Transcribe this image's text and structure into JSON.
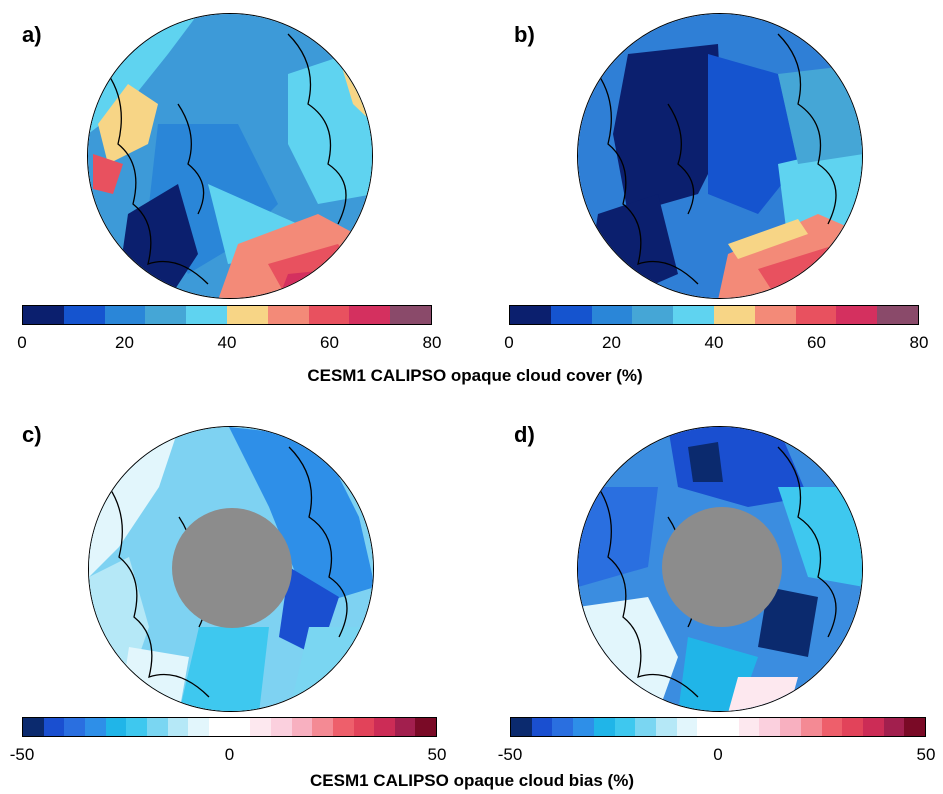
{
  "chart_data": [
    {
      "type": "heatmap",
      "panel": "a)",
      "colorbar": {
        "ticks": [
          "0",
          "20",
          "40",
          "60",
          "80"
        ],
        "range": [
          0,
          80
        ],
        "colors": [
          "#0b1f6e",
          "#1554cf",
          "#2a86d8",
          "#45a6d6",
          "#5fd3f0",
          "#f7d586",
          "#f38a78",
          "#e8515f",
          "#d4305f",
          "#8a4a6a"
        ]
      },
      "base_color": "#3d9ad8"
    },
    {
      "type": "heatmap",
      "panel": "b)",
      "colorbar": {
        "ticks": [
          "0",
          "20",
          "40",
          "60",
          "80"
        ],
        "range": [
          0,
          80
        ],
        "colors": [
          "#0b1f6e",
          "#1554cf",
          "#2a86d8",
          "#45a6d6",
          "#5fd3f0",
          "#f7d586",
          "#f38a78",
          "#e8515f",
          "#d4305f",
          "#8a4a6a"
        ]
      },
      "base_color": "#2f7fd6"
    },
    {
      "type": "heatmap",
      "panel": "c)",
      "colorbar": {
        "ticks": [
          "-50",
          "0",
          "50"
        ],
        "range": [
          -50,
          50
        ],
        "colors": [
          "#0b2a6e",
          "#1a4fd0",
          "#2a6fe0",
          "#2e8fe8",
          "#20b5e8",
          "#3ec8ef",
          "#7ad6f2",
          "#b5e8f7",
          "#e2f6fc",
          "#ffffff",
          "#ffffff",
          "#fde8ef",
          "#fbd0de",
          "#f8b0c0",
          "#f48a94",
          "#ee5f6b",
          "#e2435a",
          "#cc2c56",
          "#a21f4e",
          "#7a0a26"
        ]
      },
      "base_color": "#7ed2f2",
      "pole_hole": true
    },
    {
      "type": "heatmap",
      "panel": "d)",
      "colorbar": {
        "ticks": [
          "-50",
          "0",
          "50"
        ],
        "range": [
          -50,
          50
        ],
        "colors": [
          "#0b2a6e",
          "#1a4fd0",
          "#2a6fe0",
          "#2e8fe8",
          "#20b5e8",
          "#3ec8ef",
          "#7ad6f2",
          "#b5e8f7",
          "#e2f6fc",
          "#ffffff",
          "#ffffff",
          "#fde8ef",
          "#fbd0de",
          "#f8b0c0",
          "#f48a94",
          "#ee5f6b",
          "#e2435a",
          "#cc2c56",
          "#a21f4e",
          "#7a0a26"
        ]
      },
      "base_color": "#3b8de0",
      "pole_hole": true
    }
  ],
  "captions": {
    "top": "CESM1 CALIPSO opaque cloud cover (%)",
    "bottom": "CESM1 CALIPSO opaque cloud bias (%)"
  }
}
